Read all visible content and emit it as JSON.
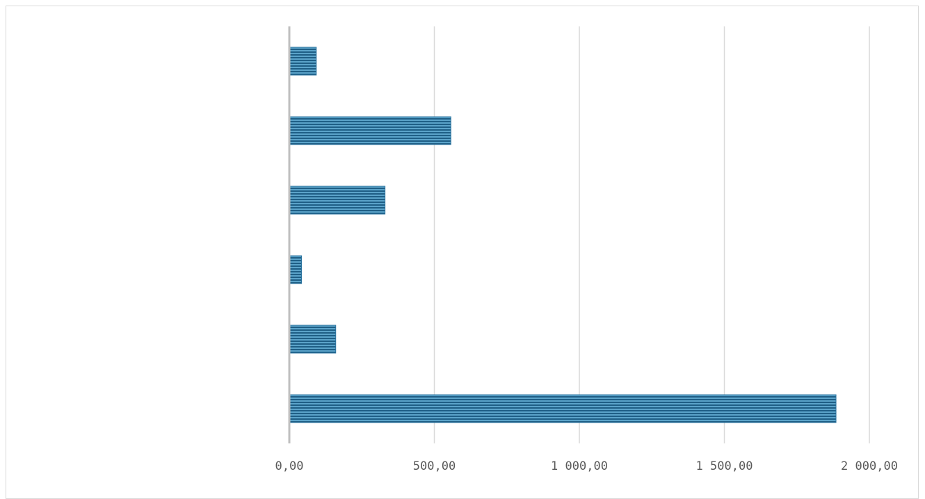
{
  "chart_data": {
    "type": "bar",
    "orientation": "horizontal",
    "title": "",
    "xlabel": "",
    "ylabel": "",
    "categories": [
      "",
      "",
      "",
      "",
      "",
      ""
    ],
    "values": [
      1885,
      160,
      42,
      330,
      557,
      93
    ],
    "xlim": [
      0,
      2000
    ],
    "xticks": [
      0,
      500,
      1000,
      1500,
      2000
    ],
    "xtick_labels": [
      "0,00",
      "500,00",
      "1 000,00",
      "1 500,00",
      "2 000,00"
    ],
    "grid": "vertical",
    "legend": "none",
    "colors": {
      "bar_light": "#5ba3c9",
      "bar_dark": "#1f5f86",
      "bar_outline": "#2e75a0",
      "grid": "#d9d9d9",
      "axis": "#bfbfbf"
    }
  }
}
